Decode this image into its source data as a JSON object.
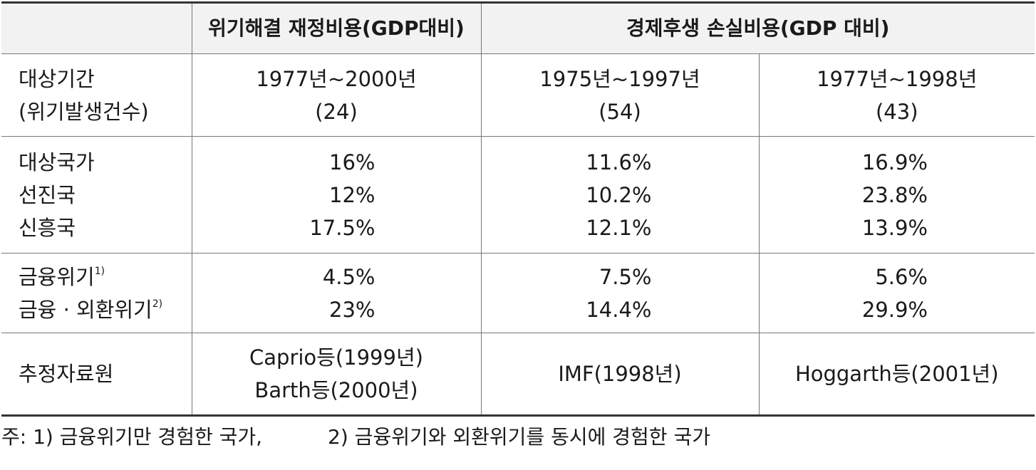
{
  "header": {
    "empty": "",
    "fiscal_cost": "위기해결 재정비용(GDP대비)",
    "output_loss": "경제후생 손실비용(GDP 대비)"
  },
  "rows": {
    "period": {
      "label_line1": "대상기간",
      "label_line2": "(위기발생건수)",
      "col1_line1": "1977년~2000년",
      "col1_line2": "(24)",
      "col2_line1": "1975년~1997년",
      "col2_line2": "(54)",
      "col3_line1": "1977년~1998년",
      "col3_line2": "(43)"
    },
    "countries": {
      "labels": [
        "대상국가",
        "선진국",
        "신흥국"
      ],
      "col1": [
        "16%",
        "12%",
        "17.5%"
      ],
      "col2": [
        "11.6%",
        "10.2%",
        "12.1%"
      ],
      "col3": [
        "16.9%",
        "23.8%",
        "13.9%"
      ]
    },
    "crisis": {
      "label1": "금융위기",
      "label1_sup": "1)",
      "label2": "금융 · 외환위기",
      "label2_sup": "2)",
      "col1": [
        "4.5%",
        "23%"
      ],
      "col2": [
        "7.5%",
        "14.4%"
      ],
      "col3": [
        "5.6%",
        "29.9%"
      ]
    },
    "source": {
      "label": "추정자료원",
      "col1_line1": "Caprio등(1999년)",
      "col1_line2": "Barth등(2000년)",
      "col2": "IMF(1998년)",
      "col3": "Hoggarth등(2001년)"
    }
  },
  "note": {
    "part1": "주: 1) 금융위기만 경험한 국가,",
    "part2": "2) 금융위기와 외환위기를 동시에 경험한 국가"
  }
}
